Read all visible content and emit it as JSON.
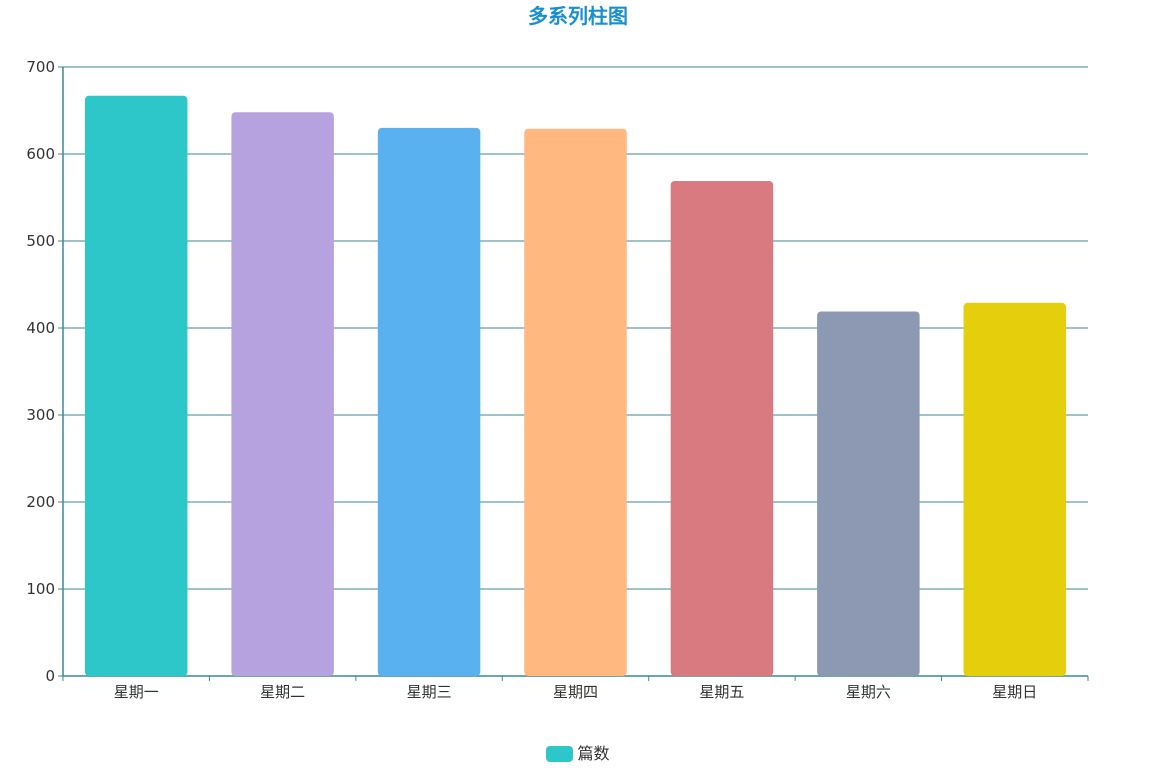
{
  "chart_data": {
    "type": "bar",
    "title": "多系列柱图",
    "categories": [
      "星期一",
      "星期二",
      "星期三",
      "星期四",
      "星期五",
      "星期六",
      "星期日"
    ],
    "series": [
      {
        "name": "篇数",
        "values": [
          667,
          648,
          630,
          629,
          569,
          419,
          429
        ]
      }
    ],
    "bar_colors": [
      "#2ec7c9",
      "#b6a2de",
      "#5ab1ef",
      "#ffb980",
      "#d87a80",
      "#8d98b3",
      "#e5cf0d"
    ],
    "ylim": [
      0,
      700
    ],
    "yticks": [
      0,
      100,
      200,
      300,
      400,
      500,
      600,
      700
    ],
    "grid": true,
    "legend_position": "bottom-center",
    "xlabel": "",
    "ylabel": ""
  },
  "colors": {
    "title": "#1a8fd0",
    "axis": "#3c8a93",
    "grid": "#3c8a93",
    "tick_text": "#333333"
  }
}
